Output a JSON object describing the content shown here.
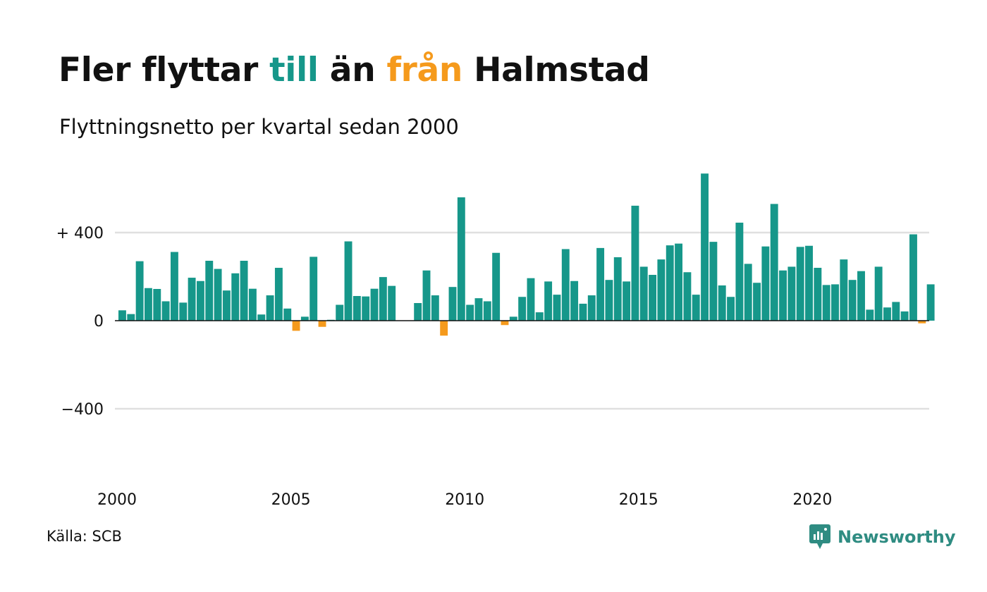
{
  "title": {
    "part1": "Fler flyttar ",
    "part2": "till",
    "part3": " än ",
    "part4": "från",
    "part5": " Halmstad"
  },
  "subtitle": "Flyttningsnetto per kvartal sedan 2000",
  "source": "Källa: SCB",
  "logo_text": "Newsworthy",
  "colors": {
    "positive": "#16978a",
    "negative": "#f59a1c",
    "grid": "#e0e0e0",
    "text": "#111111"
  },
  "chart_data": {
    "type": "bar",
    "title": "Fler flyttar till än från Halmstad",
    "subtitle": "Flyttningsnetto per kvartal sedan 2000",
    "ylim": [
      -750,
      700
    ],
    "y_ticks": [
      {
        "value": 400,
        "label": "+ 400"
      },
      {
        "value": 0,
        "label": "0"
      },
      {
        "value": -400,
        "label": "−400"
      }
    ],
    "x_ticks": [
      "2000",
      "2005",
      "2010",
      "2015",
      "2020"
    ],
    "x_start_year": 2000,
    "grid": true,
    "legend": "none",
    "values": [
      47,
      30,
      270,
      148,
      144,
      88,
      312,
      82,
      195,
      180,
      272,
      235,
      137,
      215,
      272,
      145,
      28,
      115,
      240,
      55,
      -46,
      18,
      290,
      -28,
      4,
      72,
      360,
      112,
      110,
      145,
      198,
      158,
      0,
      0,
      80,
      228,
      115,
      -68,
      153,
      560,
      72,
      102,
      88,
      308,
      -20,
      18,
      108,
      193,
      38,
      178,
      118,
      325,
      180,
      77,
      115,
      330,
      185,
      288,
      178,
      522,
      245,
      208,
      278,
      342,
      350,
      220,
      118,
      668,
      358,
      160,
      108,
      445,
      258,
      172,
      337,
      530,
      228,
      245,
      335,
      340,
      240,
      162,
      165,
      278,
      185,
      225,
      50,
      245,
      60,
      85,
      42,
      392,
      -12,
      165
    ]
  }
}
